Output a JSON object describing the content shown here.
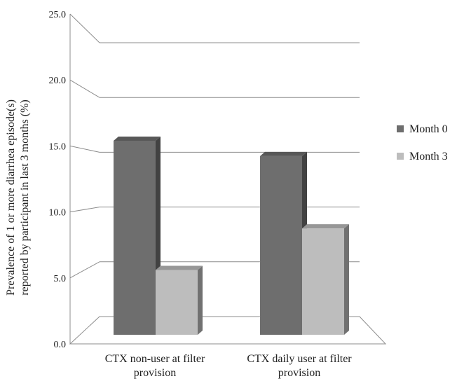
{
  "chart_data": {
    "type": "bar",
    "title": "",
    "xlabel": "",
    "ylabel_lines": [
      "Prevalence of 1 or more diarrhea episode(s)",
      "reported by participant  in last 3 months (%)"
    ],
    "ylim": [
      0,
      25
    ],
    "yticks": [
      "0.0",
      "5.0",
      "10.0",
      "15.0",
      "20.0",
      "25.0"
    ],
    "categories": [
      [
        "CTX non-user at filter",
        "provision"
      ],
      [
        "CTX daily user at filter",
        "provision"
      ]
    ],
    "series": [
      {
        "name": "Month 0",
        "values": [
          17.2,
          15.8
        ],
        "color": "#6e6e6e"
      },
      {
        "name": "Month 3",
        "values": [
          5.4,
          9.2
        ],
        "color": "#bdbdbd"
      }
    ],
    "grid": true,
    "legend_position": "right",
    "style": "3d-clustered-column"
  }
}
